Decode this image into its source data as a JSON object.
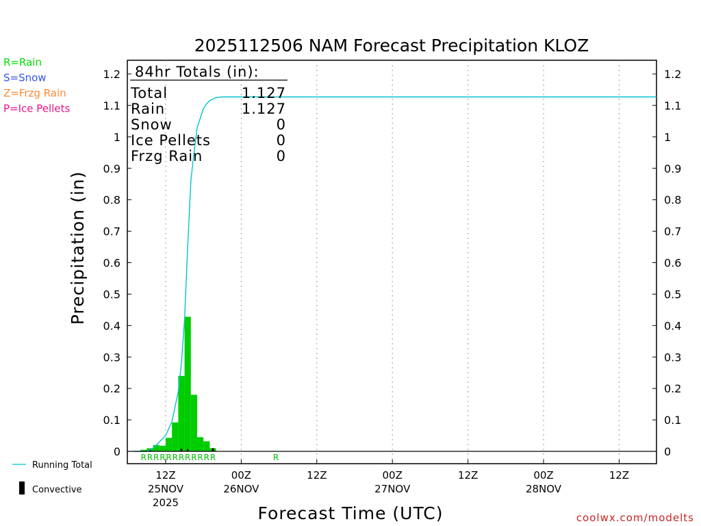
{
  "chart_data": {
    "type": "bar",
    "title": "2025112506 NAM Forecast Precipitation KLOZ",
    "xlabel": "Forecast Time (UTC)",
    "ylabel": "Precipitation (in)",
    "ylim": [
      0,
      1.2
    ],
    "yticks": [
      "0",
      "0.1",
      "0.2",
      "0.3",
      "0.4",
      "0.5",
      "0.6",
      "0.7",
      "0.8",
      "0.9",
      "1",
      "1.1",
      "1.2"
    ],
    "x_unit": "forecast hour (0 = 25NOV 06Z)",
    "xlim": [
      0,
      84
    ],
    "x_ticks": [
      {
        "hour": 6,
        "label": "12Z",
        "date": "25NOV",
        "year": "2025"
      },
      {
        "hour": 18,
        "label": "00Z",
        "date": "26NOV",
        "year": ""
      },
      {
        "hour": 30,
        "label": "12Z",
        "date": "",
        "year": ""
      },
      {
        "hour": 42,
        "label": "00Z",
        "date": "27NOV",
        "year": ""
      },
      {
        "hour": 54,
        "label": "12Z",
        "date": "",
        "year": ""
      },
      {
        "hour": 66,
        "label": "00Z",
        "date": "28NOV",
        "year": ""
      },
      {
        "hour": 78,
        "label": "12Z",
        "date": "",
        "year": ""
      }
    ],
    "bar_hours": [
      3,
      4,
      5,
      6,
      7,
      8,
      9,
      10,
      11,
      12,
      13,
      14
    ],
    "rain_bars": [
      0.005,
      0.01,
      0.02,
      0.018,
      0.043,
      0.092,
      0.24,
      0.428,
      0.18,
      0.045,
      0.032,
      0.01
    ],
    "convective_bars": [
      0,
      0.005,
      0,
      0,
      0,
      0,
      0.008,
      0.006,
      0,
      0,
      0,
      0.01
    ],
    "running_total": {
      "hours": [
        1,
        2,
        3,
        4,
        5,
        6,
        7,
        8,
        8.5,
        9,
        9.5,
        10,
        10.5,
        11,
        11.5,
        12,
        12.5,
        13,
        14,
        15,
        84
      ],
      "values": [
        0,
        0,
        0,
        0.01,
        0.03,
        0.05,
        0.095,
        0.19,
        0.28,
        0.42,
        0.65,
        0.86,
        0.95,
        1.03,
        1.06,
        1.09,
        1.105,
        1.115,
        1.125,
        1.127,
        1.127
      ]
    },
    "ptype_marks": {
      "hours": [
        3,
        4,
        5,
        6,
        7,
        8,
        9,
        10,
        11,
        12,
        13,
        14,
        24
      ],
      "codes": [
        "R",
        "R",
        "R",
        "R",
        "R",
        "R",
        "R",
        "R",
        "R",
        "R",
        "R",
        "R",
        "R"
      ]
    },
    "totals": {
      "header": "84hr Totals (in):",
      "rows": [
        {
          "label": "Total",
          "value": "1.127"
        },
        {
          "label": "Rain",
          "value": "1.127"
        },
        {
          "label": "Snow",
          "value": "0"
        },
        {
          "label": "Ice Pellets",
          "value": "0"
        },
        {
          "label": "Frzg Rain",
          "value": "0"
        }
      ]
    },
    "ptype_legend": [
      {
        "text": "R=Rain",
        "color": "#00dd00"
      },
      {
        "text": "S=Snow",
        "color": "#3355ee"
      },
      {
        "text": "Z=Frzg Rain",
        "color": "#ff8833"
      },
      {
        "text": "P=Ice Pellets",
        "color": "#ee1188"
      }
    ],
    "series_legend": {
      "running_total": "Running Total",
      "convective": "Convective"
    },
    "colors": {
      "rain": "#00cc00",
      "convective": "#000000",
      "running_total": "#00c4cc",
      "ptype_text": "#00bb00",
      "credit": "#cc2222"
    },
    "credit": "coolwx.com/modelts"
  }
}
